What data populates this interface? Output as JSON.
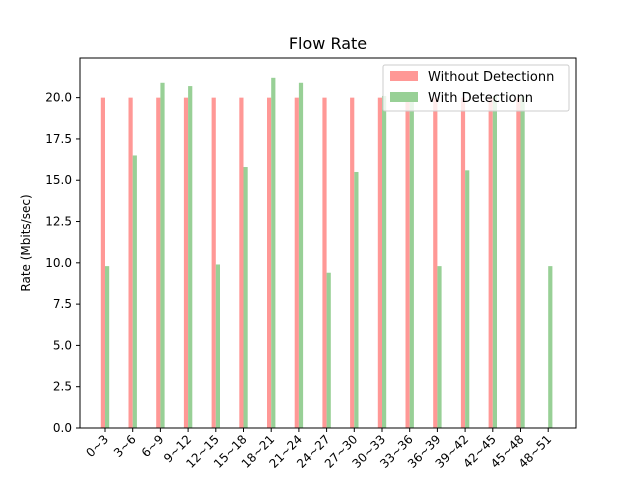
{
  "chart_data": {
    "type": "bar",
    "title": "Flow Rate",
    "xlabel": "",
    "ylabel": "Rate (Mbits/sec)",
    "ylim": [
      0,
      22.4
    ],
    "yticks": [
      "0.0",
      "2.5",
      "5.0",
      "7.5",
      "10.0",
      "12.5",
      "15.0",
      "17.5",
      "20.0"
    ],
    "categories": [
      "0~3",
      "3~6",
      "6~9",
      "9~12",
      "12~15",
      "15~18",
      "18~21",
      "21~24",
      "24~27",
      "27~30",
      "30~33",
      "33~36",
      "36~39",
      "39~42",
      "42~45",
      "45~48",
      "48~51"
    ],
    "series": [
      {
        "name": "Without Detectionn",
        "color": "#ff9896",
        "values": [
          20.0,
          20.0,
          20.0,
          20.0,
          20.0,
          20.0,
          20.0,
          20.0,
          20.0,
          20.0,
          20.0,
          20.0,
          20.0,
          20.0,
          20.0,
          20.0,
          0
        ]
      },
      {
        "name": "With Detectionn",
        "color": "#98d096",
        "values": [
          9.8,
          16.5,
          20.9,
          20.7,
          9.9,
          15.8,
          21.2,
          20.9,
          9.4,
          15.5,
          20.1,
          20.1,
          9.8,
          15.6,
          20.1,
          20.1,
          9.8
        ]
      }
    ],
    "legend": "top-right",
    "grid": false
  }
}
